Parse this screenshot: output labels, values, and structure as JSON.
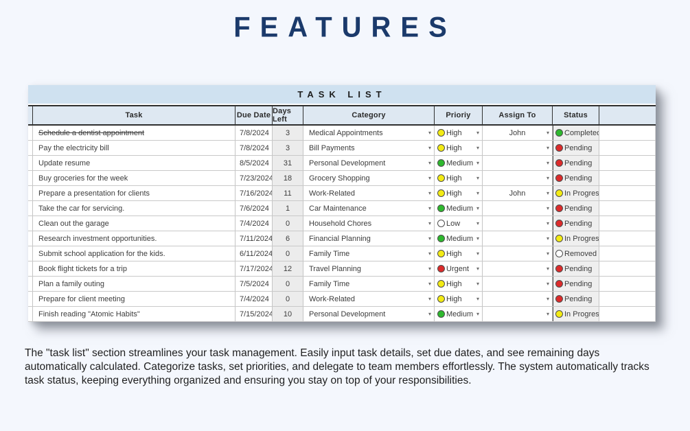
{
  "page": {
    "title": "FEATURES",
    "description": "The \"task list\" section streamlines your task management. Easily input task details, set due dates, and see remaining days automatically calculated. Categorize tasks, set priorities, and delegate to team members effortlessly. The system automatically tracks task status, keeping everything organized and ensuring you stay on top of your responsibilities."
  },
  "colors": {
    "page_background": "#f4f7fd",
    "title_navy": "#1b3a6b",
    "table_band_blue": "#cfe1f0",
    "header_row_blue": "#dee8f2",
    "dot_green": "#2eb82e",
    "dot_yellow": "#f3eb14",
    "dot_red": "#dc2b2b",
    "dot_white": "#ffffff"
  },
  "table": {
    "title": "TASK LIST",
    "columns": [
      "Task",
      "Due Date",
      "Days Left",
      "Category",
      "Prioriy",
      "Assign To",
      "Status"
    ],
    "rows": [
      {
        "task": "Schedule a dentist appointment",
        "struck": true,
        "due": "7/8/2024",
        "days": "3",
        "category": "Medical Appointments",
        "priority": "High",
        "priority_color": "yellow",
        "assign": "John",
        "status": "Completed",
        "status_color": "green"
      },
      {
        "task": "Pay the electricity bill",
        "struck": false,
        "due": "7/8/2024",
        "days": "3",
        "category": "Bill Payments",
        "priority": "High",
        "priority_color": "yellow",
        "assign": "",
        "status": "Pending",
        "status_color": "red"
      },
      {
        "task": "Update resume",
        "struck": false,
        "due": "8/5/2024",
        "days": "31",
        "category": "Personal Development",
        "priority": "Medium",
        "priority_color": "green",
        "assign": "",
        "status": "Pending",
        "status_color": "red"
      },
      {
        "task": "Buy groceries for the week",
        "struck": false,
        "due": "7/23/2024",
        "days": "18",
        "category": "Grocery Shopping",
        "priority": "High",
        "priority_color": "yellow",
        "assign": "",
        "status": "Pending",
        "status_color": "red"
      },
      {
        "task": "Prepare a presentation for clients",
        "struck": false,
        "due": "7/16/2024",
        "days": "11",
        "category": "Work-Related",
        "priority": "High",
        "priority_color": "yellow",
        "assign": "John",
        "status": "In Progress",
        "status_color": "yellow"
      },
      {
        "task": "Take the car for servicing.",
        "struck": false,
        "due": "7/6/2024",
        "days": "1",
        "category": "Car Maintenance",
        "priority": "Medium",
        "priority_color": "green",
        "assign": "",
        "status": "Pending",
        "status_color": "red"
      },
      {
        "task": "Clean out the garage",
        "struck": false,
        "due": "7/4/2024",
        "days": "0",
        "category": "Household Chores",
        "priority": "Low",
        "priority_color": "white",
        "assign": "",
        "status": "Pending",
        "status_color": "red"
      },
      {
        "task": "Research investment opportunities.",
        "struck": false,
        "due": "7/11/2024",
        "days": "6",
        "category": "Financial Planning",
        "priority": "Medium",
        "priority_color": "green",
        "assign": "",
        "status": "In Progress",
        "status_color": "yellow"
      },
      {
        "task": "Submit school application for the kids.",
        "struck": false,
        "due": "6/11/2024",
        "days": "0",
        "category": "Family Time",
        "priority": "High",
        "priority_color": "yellow",
        "assign": "",
        "status": "Removed",
        "status_color": "white"
      },
      {
        "task": "Book flight tickets for a trip",
        "struck": false,
        "due": "7/17/2024",
        "days": "12",
        "category": "Travel Planning",
        "priority": "Urgent",
        "priority_color": "red",
        "assign": "",
        "status": "Pending",
        "status_color": "red"
      },
      {
        "task": "Plan a family outing",
        "struck": false,
        "due": "7/5/2024",
        "days": "0",
        "category": "Family Time",
        "priority": "High",
        "priority_color": "yellow",
        "assign": "",
        "status": "Pending",
        "status_color": "red"
      },
      {
        "task": "Prepare for client meeting",
        "struck": false,
        "due": "7/4/2024",
        "days": "0",
        "category": "Work-Related",
        "priority": "High",
        "priority_color": "yellow",
        "assign": "",
        "status": "Pending",
        "status_color": "red"
      },
      {
        "task": "Finish reading \"Atomic Habits\"",
        "struck": false,
        "due": "7/15/2024",
        "days": "10",
        "category": "Personal Development",
        "priority": "Medium",
        "priority_color": "green",
        "assign": "",
        "status": "In Progress",
        "status_color": "yellow"
      }
    ]
  }
}
